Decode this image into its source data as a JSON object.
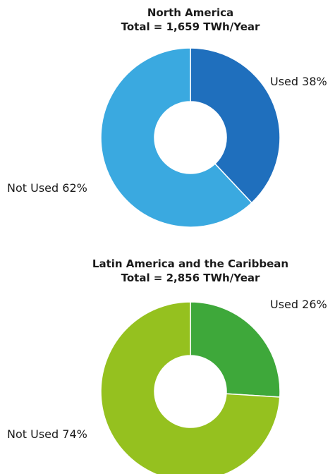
{
  "chart_data": [
    {
      "type": "pie",
      "title": "North America",
      "subtitle": "Total = 1,659 TWh/Year",
      "slices": [
        {
          "label": "Used",
          "value": 38,
          "value_label": "38%",
          "color": "#1f6fbd"
        },
        {
          "label": "Not Used",
          "value": 62,
          "value_label": "62%",
          "color": "#3aa9e0"
        }
      ]
    },
    {
      "type": "pie",
      "title": "Latin America and the Caribbean",
      "subtitle": "Total = 2,856 TWh/Year",
      "slices": [
        {
          "label": "Used",
          "value": 26,
          "value_label": "26%",
          "color": "#3ea83a"
        },
        {
          "label": "Not Used",
          "value": 74,
          "value_label": "74%",
          "color": "#95c11f"
        }
      ]
    }
  ]
}
